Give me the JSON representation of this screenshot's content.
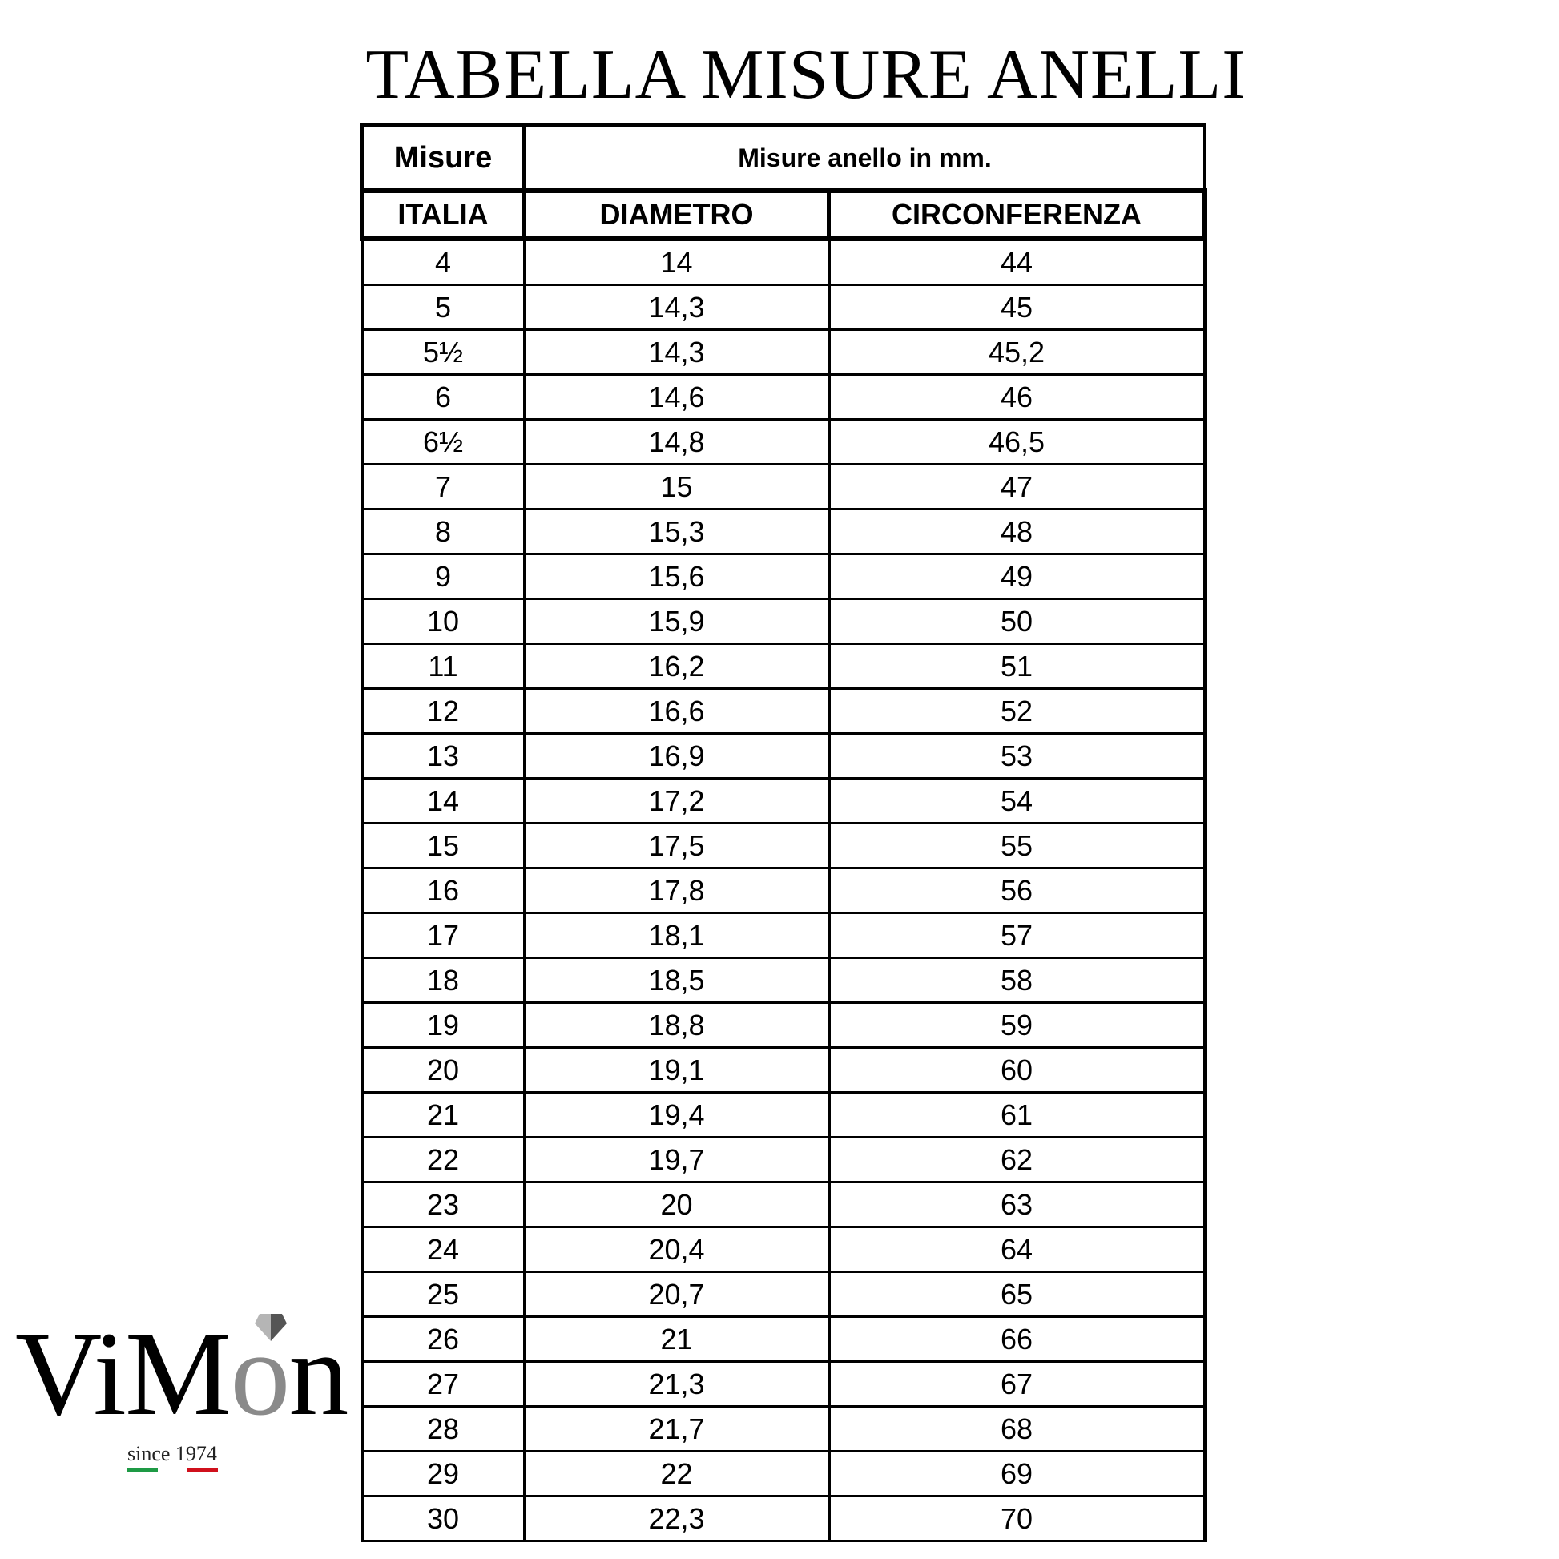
{
  "title": "TABELLA MISURE ANELLI",
  "table": {
    "header_group": {
      "col1": "Misure",
      "col23": "Misure anello in mm."
    },
    "columns": [
      "ITALIA",
      "DIAMETRO",
      "CIRCONFERENZA"
    ],
    "rows": [
      [
        "4",
        "14",
        "44"
      ],
      [
        "5",
        "14,3",
        "45"
      ],
      [
        "5½",
        "14,3",
        "45,2"
      ],
      [
        "6",
        "14,6",
        "46"
      ],
      [
        "6½",
        "14,8",
        "46,5"
      ],
      [
        "7",
        "15",
        "47"
      ],
      [
        "8",
        "15,3",
        "48"
      ],
      [
        "9",
        "15,6",
        "49"
      ],
      [
        "10",
        "15,9",
        "50"
      ],
      [
        "11",
        "16,2",
        "51"
      ],
      [
        "12",
        "16,6",
        "52"
      ],
      [
        "13",
        "16,9",
        "53"
      ],
      [
        "14",
        "17,2",
        "54"
      ],
      [
        "15",
        "17,5",
        "55"
      ],
      [
        "16",
        "17,8",
        "56"
      ],
      [
        "17",
        "18,1",
        "57"
      ],
      [
        "18",
        "18,5",
        "58"
      ],
      [
        "19",
        "18,8",
        "59"
      ],
      [
        "20",
        "19,1",
        "60"
      ],
      [
        "21",
        "19,4",
        "61"
      ],
      [
        "22",
        "19,7",
        "62"
      ],
      [
        "23",
        "20",
        "63"
      ],
      [
        "24",
        "20,4",
        "64"
      ],
      [
        "25",
        "20,7",
        "65"
      ],
      [
        "26",
        "21",
        "66"
      ],
      [
        "27",
        "21,3",
        "67"
      ],
      [
        "28",
        "21,7",
        "68"
      ],
      [
        "29",
        "22",
        "69"
      ],
      [
        "30",
        "22,3",
        "70"
      ]
    ]
  },
  "logo": {
    "brand": "ViMon",
    "tagline": "since 1974",
    "colors": {
      "green": "#1e9a45",
      "red": "#d0101c",
      "ring": "#8a8a8a"
    }
  }
}
